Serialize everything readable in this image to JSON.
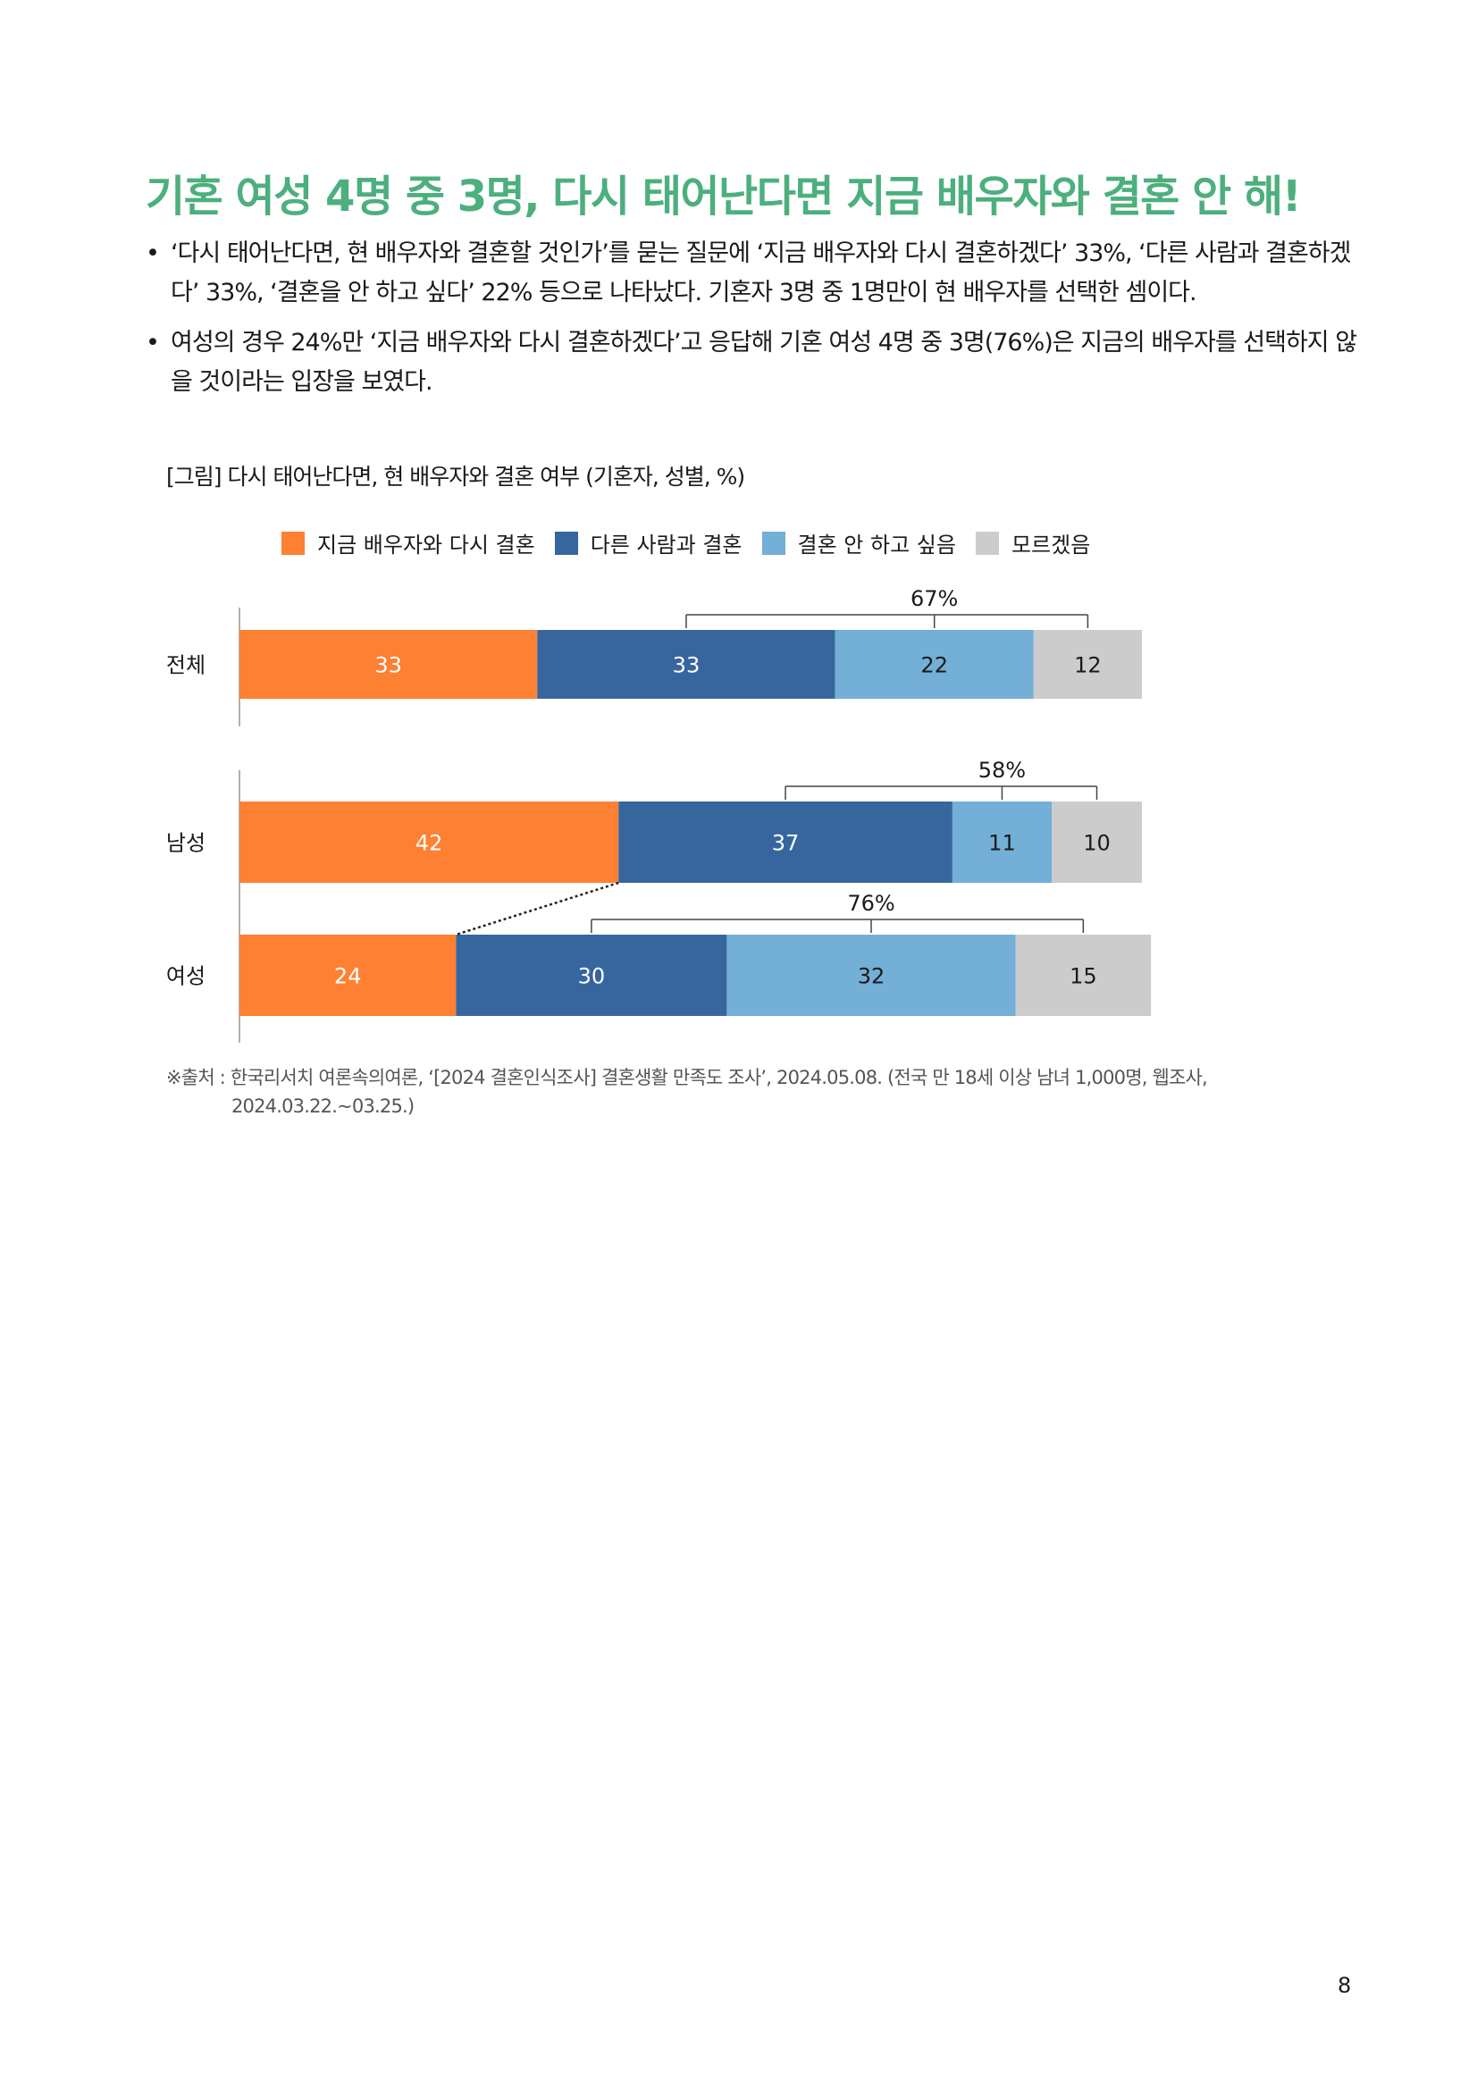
{
  "page": {
    "title": "기혼 여성 4명 중 3명, 다시 태어난다면 지금 배우자와 결혼 안 해!",
    "bullets": [
      "‘다시 태어난다면, 현 배우자와 결혼할 것인가’를 묻는 질문에 ‘지금 배우자와 다시 결혼하겠다’ 33%, ‘다른 사람과 결혼하겠다’ 33%, ‘결혼을 안 하고 싶다’ 22% 등으로 나타났다. 기혼자 3명 중 1명만이 현 배우자를 선택한 셈이다.",
      "여성의 경우 24%만 ‘지금 배우자와 다시 결혼하겠다’고 응답해 기혼 여성 4명 중 3명(76%)은 지금의 배우자를 선택하지 않을 것이라는 입장을 보였다."
    ],
    "figure_caption": "[그림] 다시 태어난다면, 현 배우자와 결혼 여부 (기혼자, 성별, %)",
    "source_line1": "※출처 : 한국리서치 여론속의여론, ‘[2024 결혼인식조사] 결혼생활 만족도 조사’, 2024.05.08. (전국 만 18세 이상 남녀 1,000명, 웹조사,",
    "source_line2": "2024.03.22.~03.25.)",
    "page_number": "8"
  },
  "legend": [
    {
      "label": "지금 배우자와 다시 결혼",
      "color": "#fd8033"
    },
    {
      "label": "다른 사람과 결혼",
      "color": "#37669f"
    },
    {
      "label": "결혼 안 하고 싶음",
      "color": "#73afd6"
    },
    {
      "label": "모르겠음",
      "color": "#cccccc"
    }
  ],
  "chart_data": {
    "type": "bar",
    "orientation": "horizontal",
    "stacked": true,
    "title": "",
    "categories": [
      "전체",
      "남성",
      "여성"
    ],
    "series": [
      {
        "name": "지금 배우자와 다시 결혼",
        "color": "#fd8033",
        "values": [
          33,
          42,
          24
        ]
      },
      {
        "name": "다른 사람과 결혼",
        "color": "#37669f",
        "values": [
          33,
          37,
          30
        ]
      },
      {
        "name": "결혼 안 하고 싶음",
        "color": "#73afd6",
        "values": [
          22,
          11,
          32
        ]
      },
      {
        "name": "모르겠음",
        "color": "#cccccc",
        "values": [
          12,
          10,
          15
        ]
      }
    ],
    "brackets": [
      {
        "category": "전체",
        "label": "67%"
      },
      {
        "category": "남성",
        "label": "58%"
      },
      {
        "category": "여성",
        "label": "76%"
      }
    ],
    "xlim": [
      0,
      100
    ],
    "grid": false,
    "legend_position": "top"
  }
}
